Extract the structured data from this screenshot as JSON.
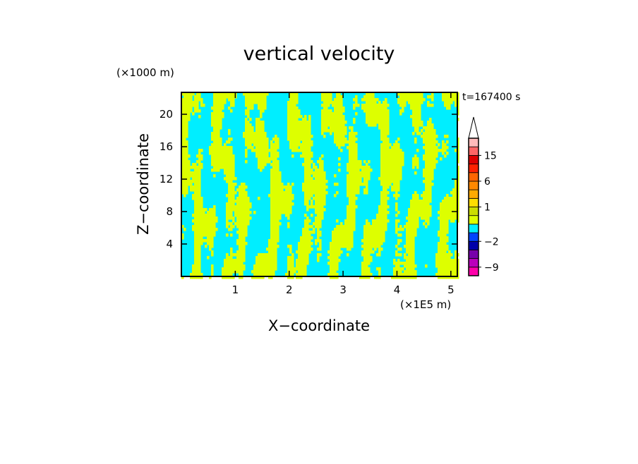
{
  "chart_data": {
    "type": "heatmap",
    "title": "vertical velocity",
    "xlabel": "X−coordinate",
    "ylabel": "Z−coordinate",
    "x_unit": "(×1E5 m)",
    "y_unit": "(×1000 m)",
    "time_label": "t=167400 s",
    "xlim": [
      0,
      5.12
    ],
    "ylim": [
      0,
      22.7
    ],
    "x_ticks": [
      1,
      2,
      3,
      4,
      5
    ],
    "y_ticks": [
      4,
      8,
      12,
      16,
      20
    ],
    "field_colors": {
      "positive": "#ddff00",
      "negative": "#00eeff"
    },
    "field_seed": 1674,
    "colorbar": {
      "levels": [
        -12,
        -9,
        -6,
        -4,
        -2,
        -1,
        0,
        0.5,
        1,
        2,
        4,
        6,
        8,
        10,
        15,
        20,
        30
      ],
      "colors": [
        "#ff00aa",
        "#bb00bb",
        "#7700aa",
        "#0000aa",
        "#0044ff",
        "#00eeff",
        "#ddff00",
        "#ccdd00",
        "#ffdd00",
        "#ffaa00",
        "#ff8800",
        "#ff6600",
        "#ff2200",
        "#dd0000",
        "#ff6666",
        "#ffbbbb"
      ],
      "labeled_levels": [
        -9,
        -2,
        1,
        6,
        15
      ],
      "extend": "max",
      "extend_color": "#ffffff"
    }
  }
}
